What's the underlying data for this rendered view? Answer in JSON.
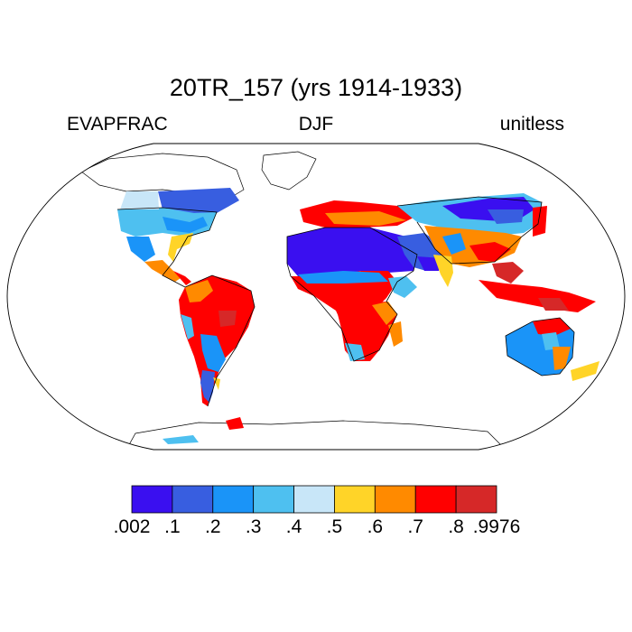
{
  "title": "20TR_157 (yrs 1914-1933)",
  "left_label": "EVAPFRAC",
  "center_label": "DJF",
  "right_label": "unitless",
  "legend": {
    "colors": [
      "#3a0ff0",
      "#385ee0",
      "#1a94f8",
      "#4ec0f0",
      "#c8e6f8",
      "#ffd428",
      "#ff8a00",
      "#ff0000",
      "#d62828"
    ],
    "tick_labels": [
      ".002",
      ".1",
      ".2",
      ".3",
      ".4",
      ".5",
      ".6",
      ".7",
      ".8",
      ".9976"
    ]
  }
}
